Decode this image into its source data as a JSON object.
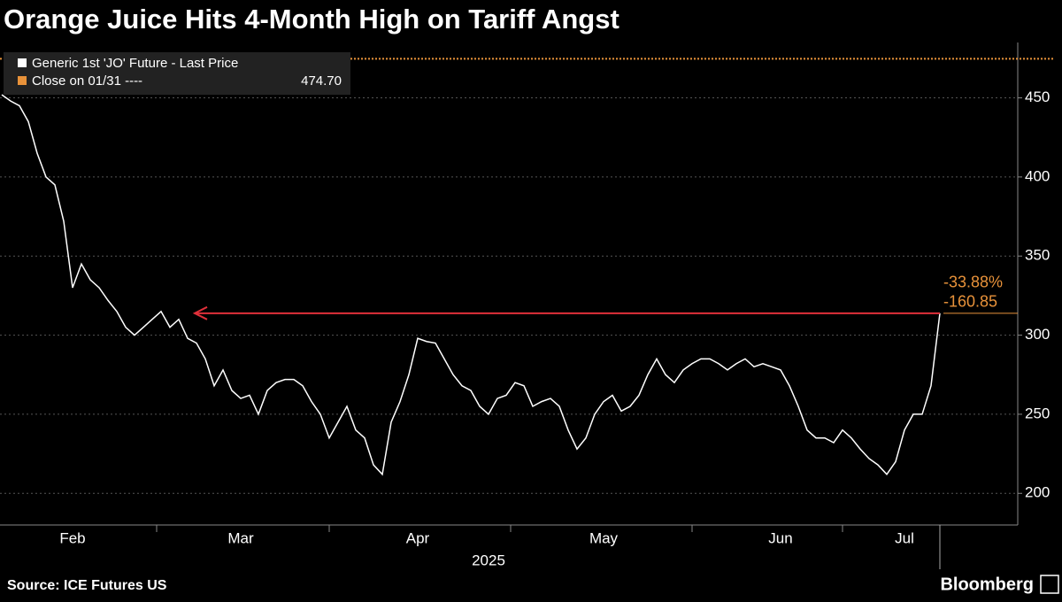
{
  "chart_data": {
    "type": "line",
    "title": "Orange Juice Hits 4-Month High on Tariff Angst",
    "x_label": "2025",
    "source": "Source: ICE Futures US",
    "brand": "Bloomberg",
    "categories": [
      null,
      null,
      null,
      null,
      null,
      null,
      null,
      null,
      "Feb",
      null,
      null,
      null,
      null,
      null,
      null,
      null,
      null,
      null,
      null,
      null,
      null,
      null,
      null,
      null,
      null,
      null,
      null,
      "Mar",
      null,
      null,
      null,
      null,
      null,
      null,
      null,
      null,
      null,
      null,
      null,
      null,
      null,
      null,
      null,
      null,
      null,
      null,
      null,
      "Apr",
      null,
      null,
      null,
      null,
      null,
      null,
      null,
      null,
      null,
      null,
      null,
      null,
      null,
      null,
      null,
      null,
      null,
      null,
      null,
      null,
      "May",
      null,
      null,
      null,
      null,
      null,
      null,
      null,
      null,
      null,
      null,
      null,
      null,
      null,
      null,
      null,
      null,
      null,
      null,
      null,
      "Jun",
      null,
      null,
      null,
      null,
      null,
      null,
      null,
      null,
      null,
      null,
      null,
      null,
      null,
      "Jul",
      null,
      null,
      null,
      null
    ],
    "series": [
      {
        "name": "Generic 1st 'JO' Future - Last Price",
        "color": "#ffffff",
        "values": [
          452,
          448,
          445,
          435,
          415,
          400,
          395,
          372,
          330,
          345,
          335,
          330,
          322,
          315,
          305,
          300,
          305,
          310,
          315,
          305,
          310,
          298,
          295,
          285,
          268,
          278,
          265,
          260,
          262,
          250,
          265,
          270,
          272,
          272,
          268,
          258,
          250,
          235,
          245,
          255,
          240,
          235,
          218,
          212,
          245,
          258,
          275,
          298,
          296,
          295,
          285,
          275,
          268,
          265,
          255,
          250,
          260,
          262,
          270,
          268,
          255,
          258,
          260,
          255,
          240,
          228,
          235,
          250,
          258,
          262,
          252,
          255,
          262,
          275,
          285,
          275,
          270,
          278,
          282,
          285,
          285,
          282,
          278,
          282,
          285,
          280,
          282,
          280,
          278,
          268,
          255,
          240,
          235,
          235,
          232,
          240,
          235,
          228,
          222,
          218,
          212,
          220,
          240,
          250,
          250,
          268,
          313.85
        ]
      }
    ],
    "reference_line": {
      "label": "Close on 01/31 ----",
      "value": 474.7,
      "value_label": "474.70",
      "color": "#e8923a"
    },
    "annotations": [
      "-33.88%",
      "-160.85"
    ],
    "annotation_color": "#e8923a",
    "arrow_color": "#e0303a",
    "ylim": [
      180,
      485
    ],
    "yticks": [
      200,
      250,
      300,
      350,
      400,
      450
    ],
    "grid": true
  }
}
